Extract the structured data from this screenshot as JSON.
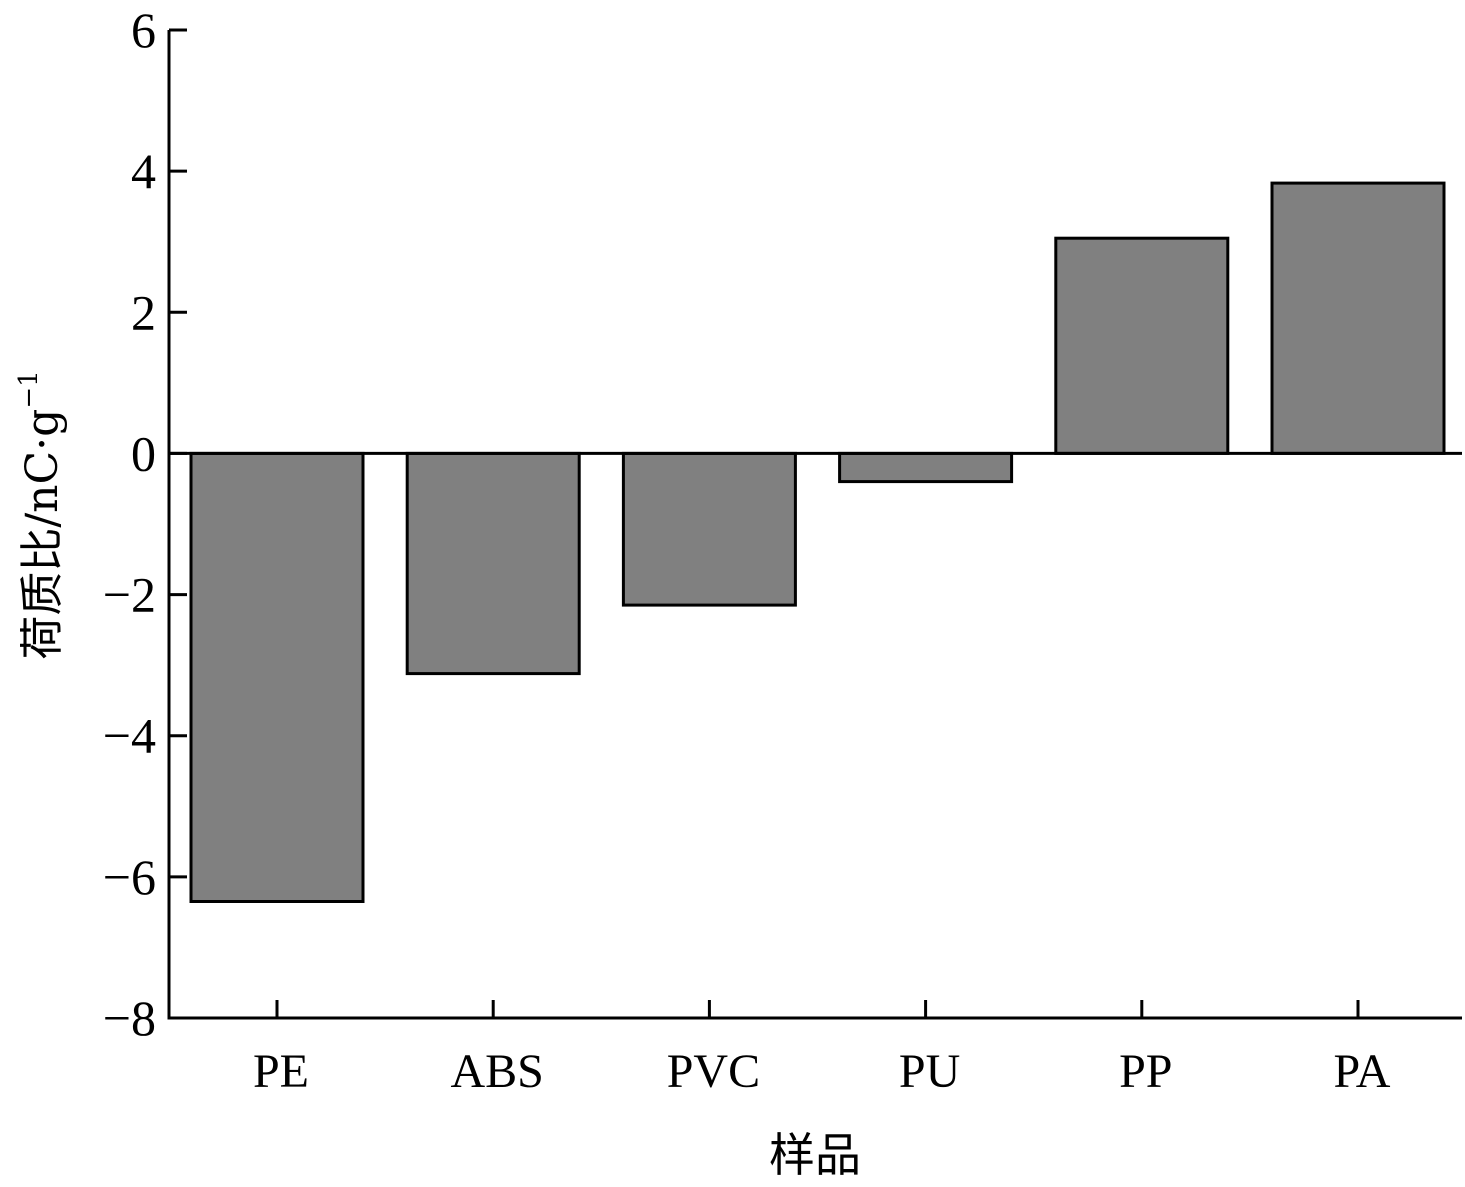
{
  "chart_data": {
    "type": "bar",
    "title": "",
    "xlabel": "样品",
    "ylabel_main": "荷质比/nC·g",
    "ylabel_exp": "−1",
    "categories": [
      "PE",
      "ABS",
      "PVC",
      "PU",
      "PP",
      "PA"
    ],
    "values": [
      -6.35,
      -3.12,
      -2.15,
      -0.4,
      3.05,
      3.83
    ],
    "ylim": [
      -8,
      6
    ],
    "yticks": [
      6,
      4,
      2,
      0,
      -2,
      -4,
      -6,
      -8
    ],
    "ytick_labels": [
      "6",
      "4",
      "2",
      "0",
      "−2",
      "−4",
      "−6",
      "−8"
    ],
    "bar_color": "#808080",
    "edge_color": "#000000",
    "grid": false,
    "legend": "none"
  }
}
